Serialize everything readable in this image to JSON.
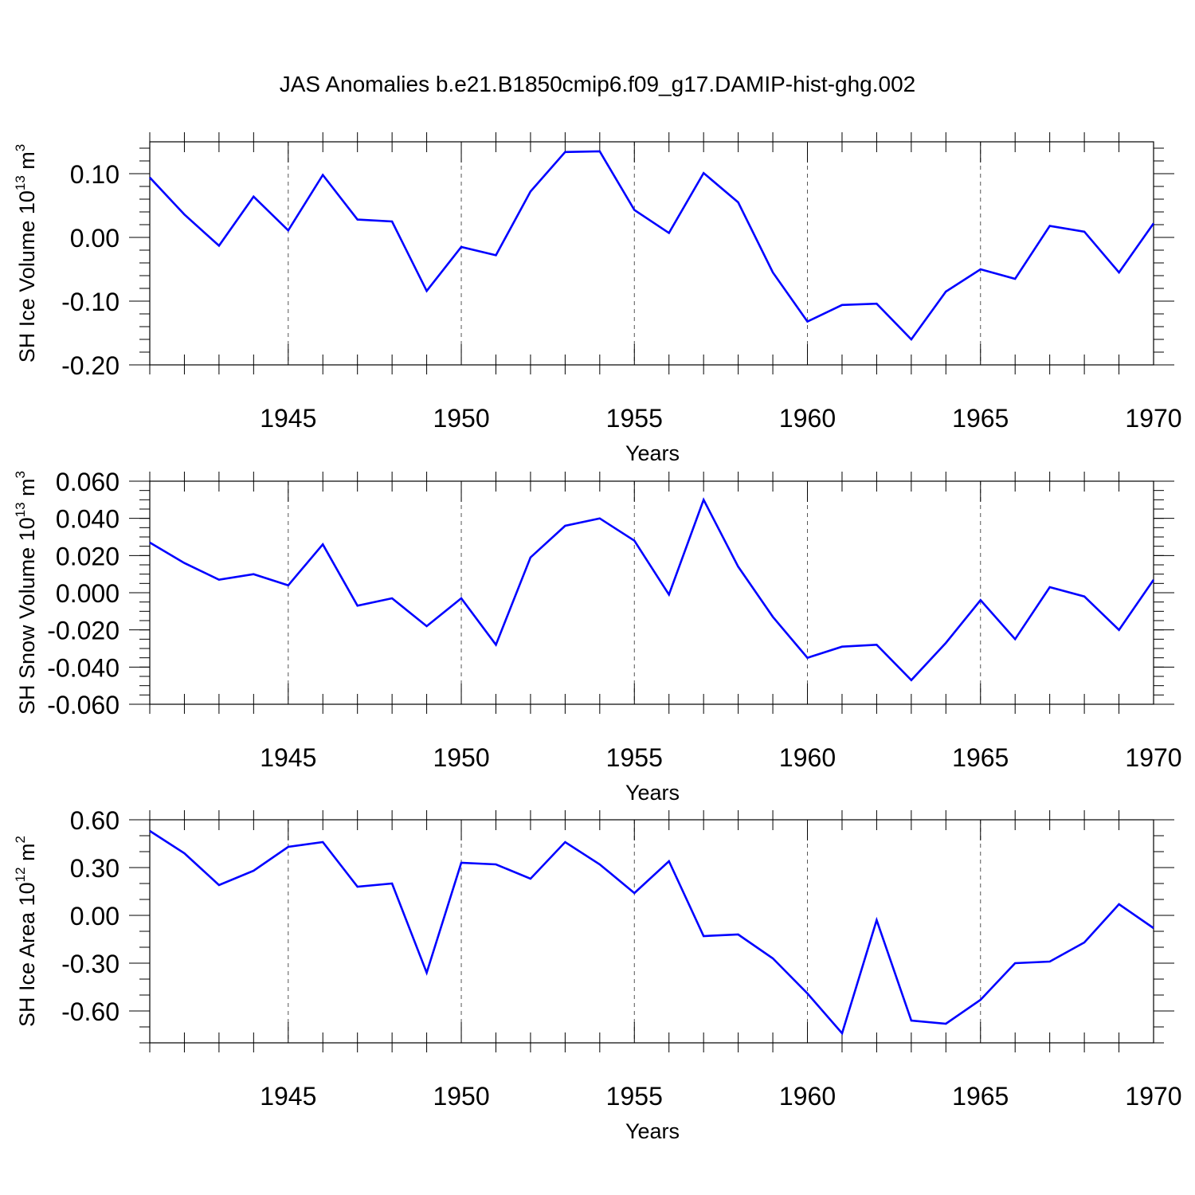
{
  "title": "JAS Anomalies b.e21.B1850cmip6.f09_g17.DAMIP-hist-ghg.002",
  "chart_data": [
    {
      "type": "line",
      "xlabel": "Years",
      "ylabel_main": "SH Ice Volume 10",
      "ylabel_exp": "13",
      "ylabel_unit": " m",
      "ylabel_unit_exp": "3",
      "xlim": [
        1941,
        1970
      ],
      "ylim": [
        -0.2,
        0.15
      ],
      "x_ticks": [
        1945,
        1950,
        1955,
        1960,
        1965,
        1970
      ],
      "y_ticks": [
        -0.2,
        -0.1,
        0.0,
        0.1
      ],
      "y_tick_labels": [
        "-0.20",
        "-0.10",
        "0.00",
        "0.10"
      ],
      "y_minor_step": 0.02,
      "line_color": "#0000ff",
      "x": [
        1941,
        1942,
        1943,
        1944,
        1945,
        1946,
        1947,
        1948,
        1949,
        1950,
        1951,
        1952,
        1953,
        1954,
        1955,
        1956,
        1957,
        1958,
        1959,
        1960,
        1961,
        1962,
        1963,
        1964,
        1965,
        1966,
        1967,
        1968,
        1969,
        1970
      ],
      "values": [
        0.094,
        0.036,
        -0.013,
        0.064,
        0.011,
        0.098,
        0.028,
        0.025,
        -0.084,
        -0.015,
        -0.028,
        0.072,
        0.134,
        0.135,
        0.043,
        0.007,
        0.101,
        0.055,
        -0.055,
        -0.132,
        -0.106,
        -0.104,
        -0.16,
        -0.085,
        -0.05,
        -0.065,
        0.018,
        0.009,
        -0.055,
        0.022
      ]
    },
    {
      "type": "line",
      "xlabel": "Years",
      "ylabel_main": "SH Snow Volume 10",
      "ylabel_exp": "13",
      "ylabel_unit": " m",
      "ylabel_unit_exp": "3",
      "xlim": [
        1941,
        1970
      ],
      "ylim": [
        -0.06,
        0.06
      ],
      "x_ticks": [
        1945,
        1950,
        1955,
        1960,
        1965,
        1970
      ],
      "y_ticks": [
        -0.06,
        -0.04,
        -0.02,
        0.0,
        0.02,
        0.04,
        0.06
      ],
      "y_tick_labels": [
        "-0.060",
        "-0.040",
        "-0.020",
        "0.000",
        "0.020",
        "0.040",
        "0.060"
      ],
      "y_minor_step": 0.005,
      "line_color": "#0000ff",
      "x": [
        1941,
        1942,
        1943,
        1944,
        1945,
        1946,
        1947,
        1948,
        1949,
        1950,
        1951,
        1952,
        1953,
        1954,
        1955,
        1956,
        1957,
        1958,
        1959,
        1960,
        1961,
        1962,
        1963,
        1964,
        1965,
        1966,
        1967,
        1968,
        1969,
        1970
      ],
      "values": [
        0.027,
        0.016,
        0.007,
        0.01,
        0.004,
        0.026,
        -0.007,
        -0.003,
        -0.018,
        -0.003,
        -0.028,
        0.019,
        0.036,
        0.04,
        0.028,
        -0.001,
        0.05,
        0.014,
        -0.013,
        -0.035,
        -0.029,
        -0.028,
        -0.047,
        -0.027,
        -0.004,
        -0.025,
        0.003,
        -0.002,
        -0.02,
        0.007
      ]
    },
    {
      "type": "line",
      "xlabel": "Years",
      "ylabel_main": "SH Ice Area 10",
      "ylabel_exp": "12",
      "ylabel_unit": " m",
      "ylabel_unit_exp": "2",
      "xlim": [
        1941,
        1970
      ],
      "ylim": [
        -0.8,
        0.6
      ],
      "x_ticks": [
        1945,
        1950,
        1955,
        1960,
        1965,
        1970
      ],
      "y_ticks": [
        -0.6,
        -0.3,
        0.0,
        0.3,
        0.6
      ],
      "y_tick_labels": [
        "-0.60",
        "-0.30",
        "0.00",
        "0.30",
        "0.60"
      ],
      "y_minor_step": 0.1,
      "line_color": "#0000ff",
      "x": [
        1941,
        1942,
        1943,
        1944,
        1945,
        1946,
        1947,
        1948,
        1949,
        1950,
        1951,
        1952,
        1953,
        1954,
        1955,
        1956,
        1957,
        1958,
        1959,
        1960,
        1961,
        1962,
        1963,
        1964,
        1965,
        1966,
        1967,
        1968,
        1969,
        1970
      ],
      "values": [
        0.53,
        0.39,
        0.19,
        0.28,
        0.43,
        0.46,
        0.18,
        0.2,
        -0.36,
        0.33,
        0.32,
        0.23,
        0.46,
        0.32,
        0.14,
        0.34,
        -0.13,
        -0.12,
        -0.27,
        -0.49,
        -0.74,
        -0.03,
        -0.66,
        -0.68,
        -0.53,
        -0.3,
        -0.29,
        -0.17,
        0.07,
        -0.08
      ]
    }
  ]
}
